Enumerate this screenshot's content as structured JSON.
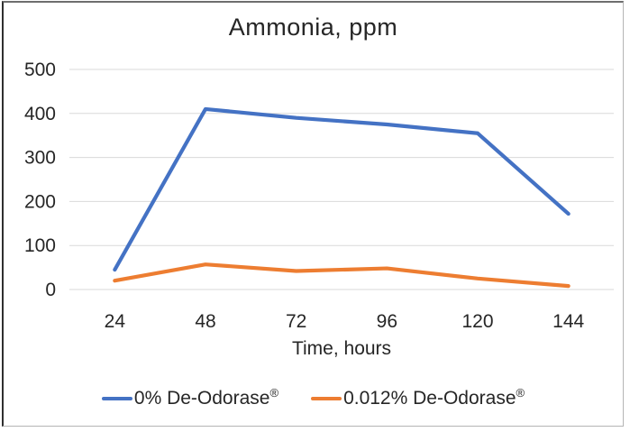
{
  "title": "Ammonia, ppm",
  "x_axis": {
    "label": "Time, hours",
    "ticks": [
      "24",
      "48",
      "72",
      "96",
      "120",
      "144"
    ]
  },
  "y_axis": {
    "ticks": [
      "500",
      "400",
      "300",
      "200",
      "100",
      "0"
    ]
  },
  "legend": [
    {
      "name": "0% De-Odorase",
      "reg": "®",
      "color": "#4472C4"
    },
    {
      "name": "0.012% De-Odorase",
      "reg": "®",
      "color": "#ED7D31"
    }
  ],
  "colors": {
    "series_blue": "#4472C4",
    "series_orange": "#ED7D31",
    "gridline": "#D9D9D9",
    "text": "#262626"
  },
  "chart_data": {
    "type": "line",
    "categories": [
      24,
      48,
      72,
      96,
      120,
      144
    ],
    "series": [
      {
        "name": "0% De-Odorase®",
        "color": "#4472C4",
        "values": [
          45,
          410,
          390,
          375,
          355,
          172
        ]
      },
      {
        "name": "0.012% De-Odorase®",
        "color": "#ED7D31",
        "values": [
          20,
          57,
          42,
          48,
          25,
          8
        ]
      }
    ],
    "title": "Ammonia, ppm",
    "xlabel": "Time, hours",
    "ylabel": "",
    "ylim": [
      0,
      500
    ],
    "y_tick_step": 100,
    "grid": "horizontal",
    "legend_position": "bottom"
  }
}
